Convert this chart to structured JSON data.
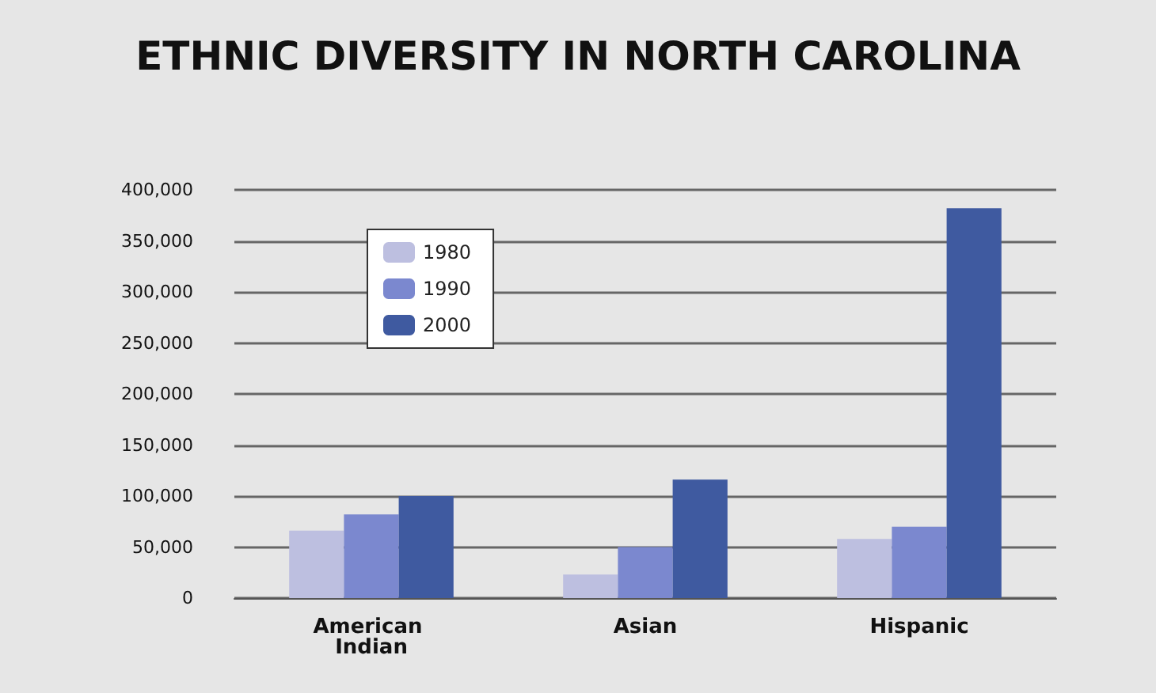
{
  "chart_data": {
    "type": "bar",
    "title": "ETHNIC DIVERSITY IN NORTH CAROLINA",
    "categories": [
      "American Indian",
      "Asian",
      "Hispanic"
    ],
    "series": [
      {
        "name": "1980",
        "color": "#bdbfe0",
        "values": [
          66000,
          23000,
          58000
        ]
      },
      {
        "name": "1990",
        "color": "#7b88cf",
        "values": [
          82000,
          50000,
          70000
        ]
      },
      {
        "name": "2000",
        "color": "#3f5aa0",
        "values": [
          100000,
          116000,
          382000
        ]
      }
    ],
    "ylim": [
      0,
      400000
    ],
    "yticks": [
      0,
      {
        "value": 50000,
        "label": "50,000"
      },
      {
        "value": 100000,
        "label": "100,000"
      },
      {
        "value": 150000,
        "label": "150,000"
      },
      {
        "value": 200000,
        "label": "200,000"
      },
      {
        "value": 250000,
        "label": "250,000"
      },
      {
        "value": 300000,
        "label": "300,000"
      },
      {
        "value": 350000,
        "label": "350,000"
      },
      {
        "value": 400000,
        "label": "400,000"
      }
    ],
    "grid": "y",
    "legend": "top left"
  }
}
